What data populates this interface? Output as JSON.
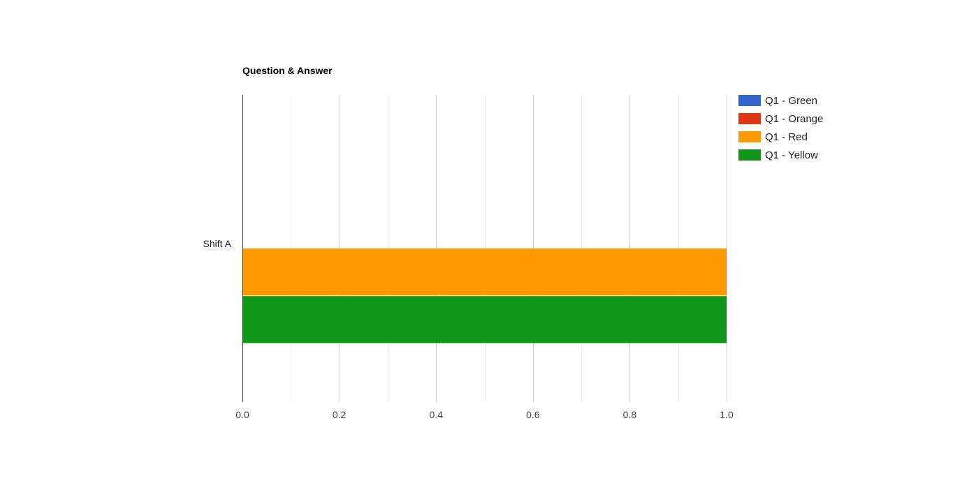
{
  "chart_data": {
    "type": "bar",
    "orientation": "horizontal",
    "title": "Question & Answer",
    "xlabel": "",
    "ylabel": "",
    "categories": [
      "Shift A"
    ],
    "series": [
      {
        "name": "Q1 - Green",
        "color": "#3366cc",
        "values": [
          0
        ]
      },
      {
        "name": "Q1 - Orange",
        "color": "#dc3912",
        "values": [
          0
        ]
      },
      {
        "name": "Q1 - Red",
        "color": "#ff9900",
        "values": [
          1.0
        ]
      },
      {
        "name": "Q1 - Yellow",
        "color": "#109618",
        "values": [
          1.0
        ]
      }
    ],
    "xlim": [
      0,
      1.0
    ],
    "x_ticks": [
      "0.0",
      "0.2",
      "0.4",
      "0.6",
      "0.8",
      "1.0"
    ],
    "grid": true,
    "legend_position": "right"
  }
}
